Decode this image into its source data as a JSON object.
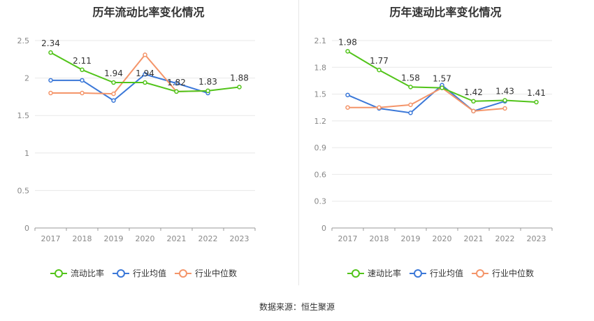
{
  "chart_data": [
    {
      "type": "line",
      "title": "历年流动比率变化情况",
      "categories": [
        "2017",
        "2018",
        "2019",
        "2020",
        "2021",
        "2022",
        "2023"
      ],
      "ylim": [
        0,
        2.5
      ],
      "yticks": [
        "0",
        "0.5",
        "1",
        "1.5",
        "2",
        "2.5"
      ],
      "ytick_values": [
        0,
        0.5,
        1,
        1.5,
        2,
        2.5
      ],
      "grid": true,
      "legend_position": "bottom",
      "series": [
        {
          "name": "流动比率",
          "color": "#52c41a",
          "values": [
            2.34,
            2.11,
            1.94,
            1.94,
            1.82,
            1.83,
            1.88
          ],
          "labels": [
            "2.34",
            "2.11",
            "1.94",
            "1.94",
            "1.82",
            "1.83",
            "1.88"
          ]
        },
        {
          "name": "行业均值",
          "color": "#3b78d8",
          "values": [
            1.97,
            1.97,
            1.7,
            2.05,
            1.93,
            1.8,
            null
          ],
          "labels": []
        },
        {
          "name": "行业中位数",
          "color": "#f4956a",
          "values": [
            1.8,
            1.8,
            1.79,
            2.31,
            1.82,
            1.83,
            null
          ],
          "labels": []
        }
      ]
    },
    {
      "type": "line",
      "title": "历年速动比率变化情况",
      "categories": [
        "2017",
        "2018",
        "2019",
        "2020",
        "2021",
        "2022",
        "2023"
      ],
      "ylim": [
        0,
        2.1
      ],
      "yticks": [
        "0",
        "0.3",
        "0.6",
        "0.9",
        "1.2",
        "1.5",
        "1.8",
        "2.1"
      ],
      "ytick_values": [
        0,
        0.3,
        0.6,
        0.9,
        1.2,
        1.5,
        1.8,
        2.1
      ],
      "grid": true,
      "legend_position": "bottom",
      "series": [
        {
          "name": "速动比率",
          "color": "#52c41a",
          "values": [
            1.98,
            1.77,
            1.58,
            1.57,
            1.42,
            1.43,
            1.41
          ],
          "labels": [
            "1.98",
            "1.77",
            "1.58",
            "1.57",
            "1.42",
            "1.43",
            "1.41"
          ]
        },
        {
          "name": "行业均值",
          "color": "#3b78d8",
          "values": [
            1.49,
            1.34,
            1.29,
            1.6,
            1.31,
            1.42,
            null
          ],
          "labels": []
        },
        {
          "name": "行业中位数",
          "color": "#f4956a",
          "values": [
            1.35,
            1.35,
            1.38,
            1.57,
            1.31,
            1.34,
            null
          ],
          "labels": []
        }
      ]
    }
  ],
  "source": "数据来源：恒生聚源"
}
